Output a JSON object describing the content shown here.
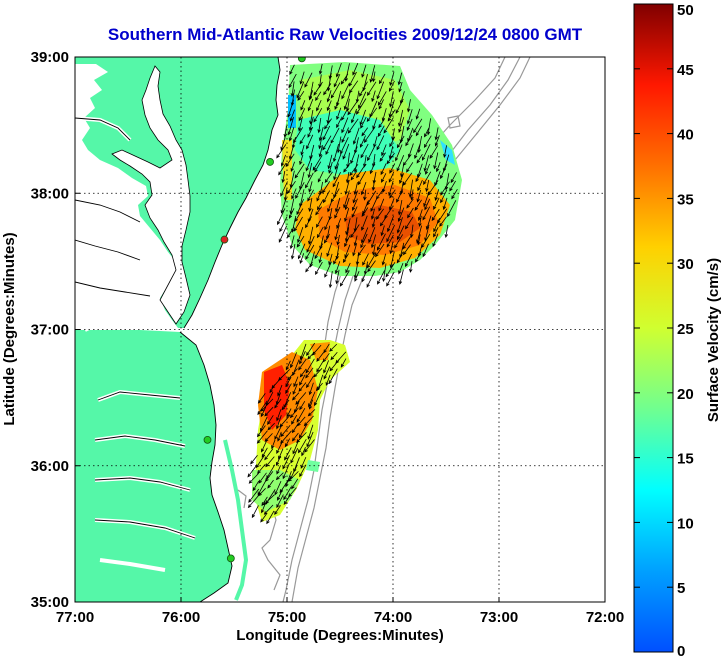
{
  "title": "Southern Mid-Atlantic Raw Velocities 2009/12/24 0800 GMT",
  "colors": {
    "title": "#0000cc",
    "land": "#55f7a8",
    "coast": "#000000",
    "bathymetry": "#999999",
    "grid": "#000000",
    "arrow": "#000000",
    "station": "#22cc22",
    "station_alt": "#dd2222"
  },
  "map": {
    "xlabel": "Longitude (Degrees:Minutes)",
    "ylabel": "Latitude (Degrees:Minutes)",
    "lon_range": [
      -77,
      -72
    ],
    "lat_range": [
      35,
      39
    ],
    "x_ticks": [
      {
        "value": -77,
        "label": "77:00"
      },
      {
        "value": -76,
        "label": "76:00"
      },
      {
        "value": -75,
        "label": "75:00"
      },
      {
        "value": -74,
        "label": "74:00"
      },
      {
        "value": -73,
        "label": "73:00"
      },
      {
        "value": -72,
        "label": "72:00"
      }
    ],
    "y_ticks": [
      {
        "value": 35,
        "label": "35:00"
      },
      {
        "value": 36,
        "label": "36:00"
      },
      {
        "value": 37,
        "label": "37:00"
      },
      {
        "value": 38,
        "label": "38:00"
      },
      {
        "value": 39,
        "label": "39:00"
      }
    ],
    "grid": "dotted",
    "stations": [
      {
        "lon": -74.86,
        "lat": 38.99,
        "type": "green"
      },
      {
        "lon": -75.16,
        "lat": 38.23,
        "type": "green"
      },
      {
        "lon": -75.59,
        "lat": 37.66,
        "type": "red"
      },
      {
        "lon": -75.75,
        "lat": 36.19,
        "type": "green"
      },
      {
        "lon": -75.53,
        "lat": 35.32,
        "type": "green"
      }
    ]
  },
  "colorbar": {
    "label": "Surface Velocity (cm/s)",
    "min": 0,
    "max": 50,
    "ticks": [
      {
        "value": 0,
        "label": "0"
      },
      {
        "value": 5,
        "label": "5"
      },
      {
        "value": 10,
        "label": "10"
      },
      {
        "value": 15,
        "label": "15"
      },
      {
        "value": 20,
        "label": "20"
      },
      {
        "value": 25,
        "label": "25"
      },
      {
        "value": 30,
        "label": "30"
      },
      {
        "value": 35,
        "label": "35"
      },
      {
        "value": 40,
        "label": "40"
      },
      {
        "value": 45,
        "label": "45"
      },
      {
        "value": 50,
        "label": "50"
      }
    ]
  }
}
